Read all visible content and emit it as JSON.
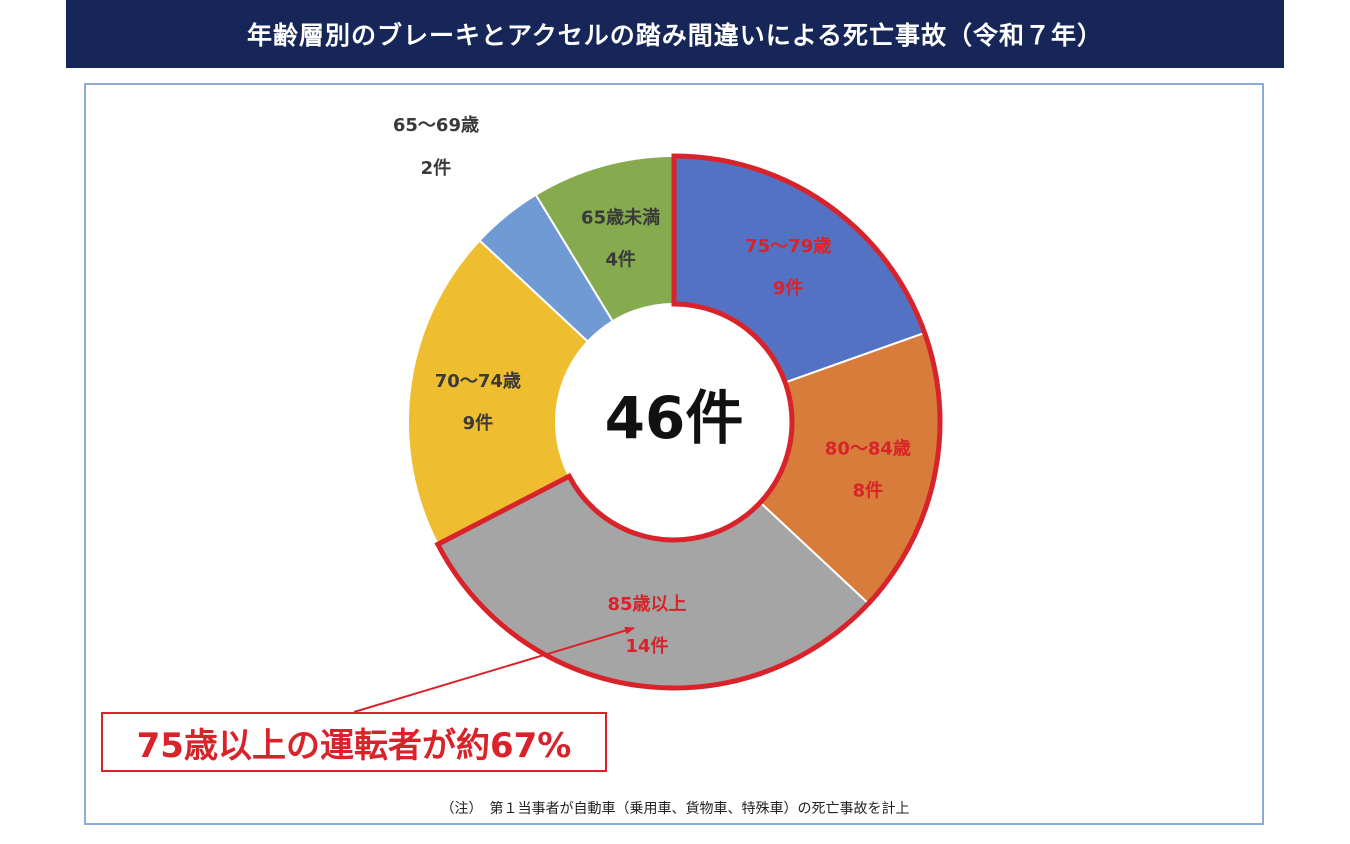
{
  "title": "年齢層別のブレーキとアクセルの踏み間違いによる死亡事故（令和７年）",
  "chart_data": {
    "type": "pie",
    "subtype": "donut",
    "title": "年齢層別のブレーキとアクセルの踏み間違いによる死亡事故（令和７年）",
    "center_label": "46件",
    "total": 46,
    "categories": [
      "75〜79歳",
      "80〜84歳",
      "85歳以上",
      "70〜74歳",
      "65〜69歳",
      "65歳未満"
    ],
    "values": [
      9,
      8,
      14,
      9,
      2,
      4
    ],
    "value_labels": [
      "9件",
      "8件",
      "14件",
      "9件",
      "2件",
      "4件"
    ],
    "colors": [
      "#5472c3",
      "#d87c3b",
      "#a5a5a5",
      "#efbe30",
      "#6f9ad4",
      "#85ab4e"
    ],
    "label_colors": [
      "#d9232a",
      "#d9232a",
      "#d9232a",
      "#3a3a3a",
      "#3a3a3a",
      "#3a3a3a"
    ],
    "highlighted": [
      "75〜79歳",
      "80〜84歳",
      "85歳以上"
    ],
    "highlight_color": "#d9232a",
    "start_angle_deg": 0,
    "direction": "clockwise"
  },
  "callout_text": "75歳以上の運転者が約67%",
  "note": "（注）　第１当事者が自動車（乗用車、貨物車、特殊車）の死亡事故を計上"
}
